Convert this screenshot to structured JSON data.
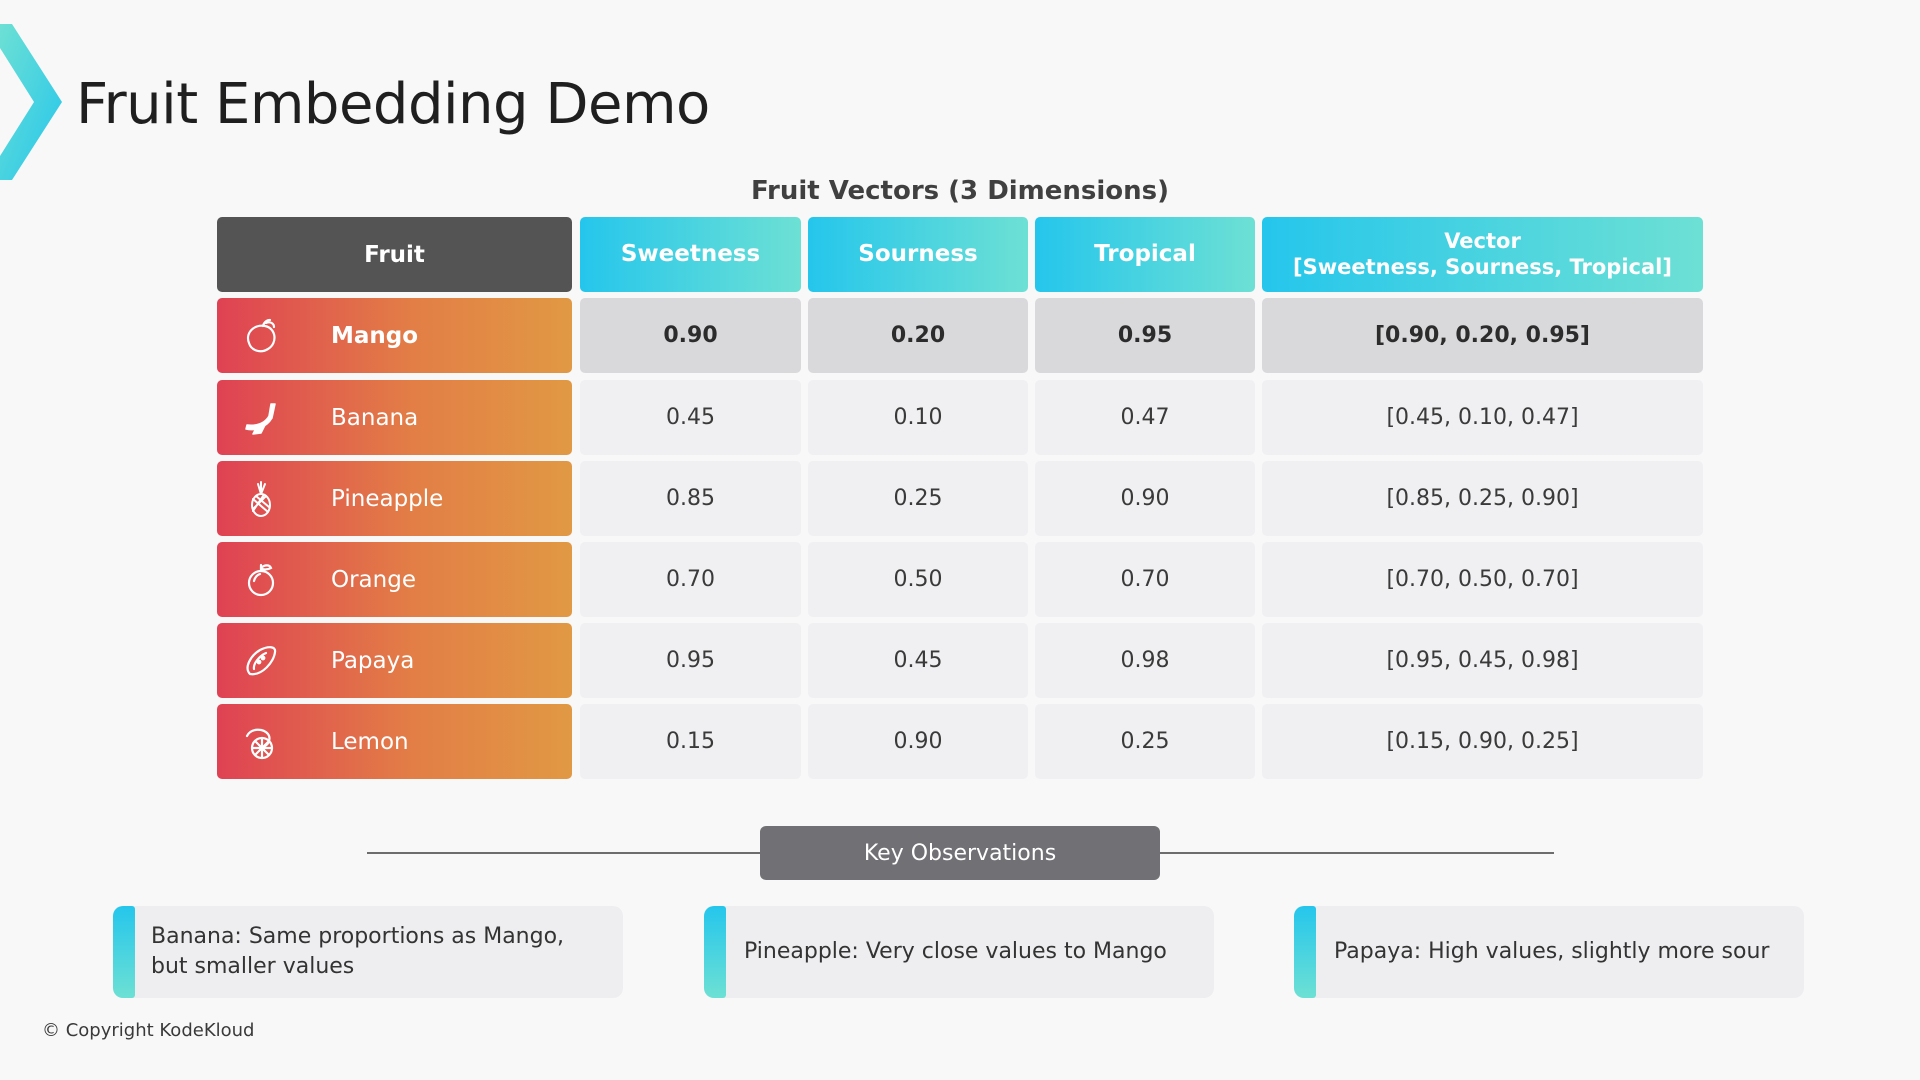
{
  "slide": {
    "title": "Fruit Embedding Demo",
    "accent_color": "#3ccfe0",
    "copyright": "© Copyright KodeKloud"
  },
  "table": {
    "caption": "Fruit Vectors (3 Dimensions)",
    "headers": {
      "fruit": "Fruit",
      "sweetness": "Sweetness",
      "sourness": "Sourness",
      "tropical": "Tropical",
      "vector_line1": "Vector",
      "vector_line2": "[Sweetness, Sourness, Tropical]"
    },
    "rows": [
      {
        "fruit": "Mango",
        "icon": "mango-icon",
        "sweetness": "0.90",
        "sourness": "0.20",
        "tropical": "0.95",
        "vector": "[0.90, 0.20, 0.95]",
        "highlighted": true
      },
      {
        "fruit": "Banana",
        "icon": "banana-icon",
        "sweetness": "0.45",
        "sourness": "0.10",
        "tropical": "0.47",
        "vector": "[0.45, 0.10, 0.47]",
        "highlighted": false
      },
      {
        "fruit": "Pineapple",
        "icon": "pineapple-icon",
        "sweetness": "0.85",
        "sourness": "0.25",
        "tropical": "0.90",
        "vector": "[0.85, 0.25, 0.90]",
        "highlighted": false
      },
      {
        "fruit": "Orange",
        "icon": "orange-icon",
        "sweetness": "0.70",
        "sourness": "0.50",
        "tropical": "0.70",
        "vector": "[0.70, 0.50, 0.70]",
        "highlighted": false
      },
      {
        "fruit": "Papaya",
        "icon": "papaya-icon",
        "sweetness": "0.95",
        "sourness": "0.45",
        "tropical": "0.98",
        "vector": "[0.95, 0.45, 0.98]",
        "highlighted": false
      },
      {
        "fruit": "Lemon",
        "icon": "lemon-icon",
        "sweetness": "0.15",
        "sourness": "0.90",
        "tropical": "0.25",
        "vector": "[0.15, 0.90, 0.25]",
        "highlighted": false
      }
    ]
  },
  "observations": {
    "title": "Key Observations",
    "items": [
      "Banana: Same proportions as Mango, but smaller values",
      "Pineapple: Very close values to Mango",
      "Papaya: High values, slightly more sour"
    ]
  }
}
